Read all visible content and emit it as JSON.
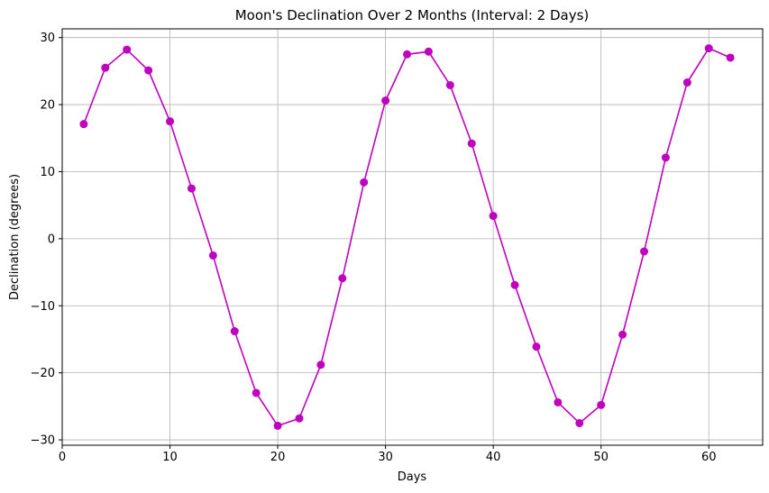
{
  "chart_data": {
    "type": "line",
    "title": "Moon's Declination Over 2 Months (Interval: 2 Days)",
    "xlabel": "Days",
    "ylabel": "Declination (degrees)",
    "xlim": [
      -0.0,
      65.0
    ],
    "ylim": [
      -30.8,
      31.3
    ],
    "xticks": [
      0,
      10,
      20,
      30,
      40,
      50,
      60
    ],
    "xtick_labels": [
      "0",
      "10",
      "20",
      "30",
      "40",
      "50",
      "60"
    ],
    "yticks": [
      -30,
      -20,
      -10,
      0,
      10,
      20,
      30
    ],
    "ytick_labels": [
      "−30",
      "−20",
      "−10",
      "0",
      "10",
      "20",
      "30"
    ],
    "grid": true,
    "series": [
      {
        "color": "#bf00bf",
        "marker": "circle",
        "x": [
          2,
          4,
          6,
          8,
          10,
          12,
          14,
          16,
          18,
          20,
          22,
          24,
          26,
          28,
          30,
          32,
          34,
          36,
          38,
          40,
          42,
          44,
          46,
          48,
          50,
          52,
          54,
          56,
          58,
          60,
          62
        ],
        "y": [
          17.1,
          25.5,
          28.2,
          25.1,
          17.5,
          7.5,
          -2.5,
          -13.8,
          -23.0,
          -27.9,
          -26.8,
          -18.8,
          -5.9,
          8.4,
          20.6,
          27.5,
          27.9,
          22.9,
          14.2,
          3.4,
          -6.9,
          -16.1,
          -24.4,
          -27.5,
          -24.8,
          -14.3,
          -1.9,
          12.1,
          23.3,
          28.4,
          27.0
        ]
      }
    ]
  }
}
